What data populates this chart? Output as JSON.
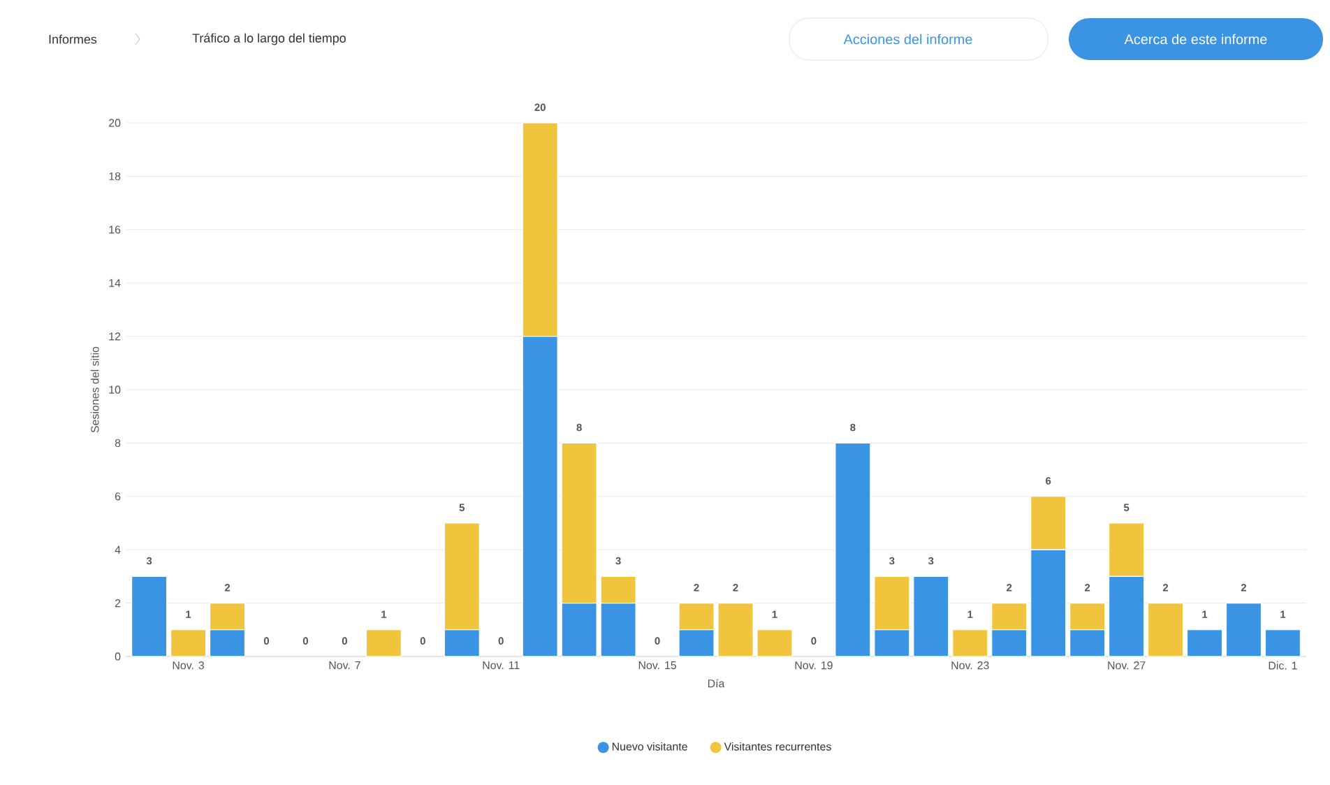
{
  "chart_data": {
    "type": "bar",
    "title": "Tráfico a lo largo del tiempo",
    "annotations": [
      "Informes",
      "Acciones del informe",
      "Acerca de este informe"
    ],
    "xlabel": "Día",
    "ylabel": "Sesiones del sitio",
    "categories": [
      null,
      "Nov. 3",
      null,
      null,
      null,
      "Nov. 7",
      null,
      null,
      null,
      "Nov. 11",
      null,
      null,
      null,
      "Nov. 15",
      null,
      null,
      null,
      "Nov. 19",
      null,
      null,
      null,
      "Nov. 23",
      null,
      null,
      null,
      "Nov. 27",
      null,
      null,
      null,
      "Dic. 1"
    ],
    "series": [
      {
        "name": "Nuevo visitante",
        "color": "#3b93e4",
        "values": [
          3,
          0,
          1,
          0,
          0,
          0,
          0,
          0,
          1,
          0,
          12,
          2,
          2,
          0,
          1,
          0,
          0,
          0,
          8,
          1,
          3,
          0,
          1,
          4,
          1,
          3,
          0,
          1,
          2,
          1
        ]
      },
      {
        "name": "Visitantes recurrentes",
        "color": "#f0c53d",
        "values": [
          0,
          1,
          1,
          0,
          0,
          0,
          1,
          0,
          4,
          0,
          8,
          6,
          1,
          0,
          1,
          2,
          1,
          0,
          0,
          2,
          0,
          1,
          1,
          2,
          1,
          2,
          2,
          0,
          0,
          0
        ]
      }
    ],
    "stacked": true,
    "totals": [
      "3",
      "1",
      "2",
      "0",
      "0",
      "0",
      "1",
      "0",
      "5",
      "0",
      "20",
      "8",
      "3",
      "0",
      "2",
      "2",
      "1",
      "0",
      "8",
      "3",
      "3",
      "1",
      "2",
      "6",
      "2",
      "5",
      "2",
      "1",
      "2",
      "1"
    ],
    "ylim": [
      0,
      20
    ],
    "yticks": [
      0,
      2,
      4,
      6,
      8,
      10,
      12,
      14,
      16,
      18,
      20
    ],
    "grid": "y",
    "legend": "bottom"
  }
}
